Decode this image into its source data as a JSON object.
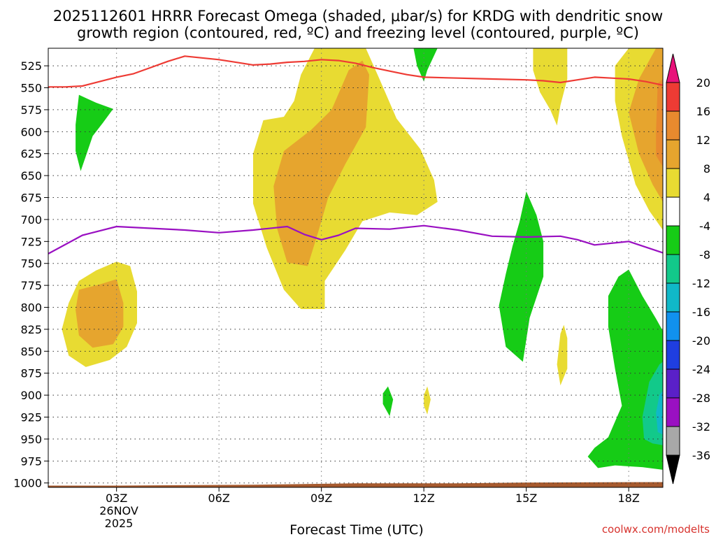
{
  "chart_data": {
    "type": "time-height contour",
    "title_line1": "2025112601 HRRR Forecast Omega (shaded, μbar/s) for KRDG with dendritic snow",
    "title_line2": "growth region (contoured, red, ºC) and freezing level (contoured, purple, ºC)",
    "xlabel": "Forecast Time (UTC)",
    "credit": "coolwx.com/modelts",
    "date_label_day": "26NOV",
    "date_label_year": "2025",
    "x_range_hours": [
      1,
      19
    ],
    "y_range_mb": [
      1005,
      505
    ],
    "x_ticks": [
      {
        "hour": 3,
        "label": "03Z"
      },
      {
        "hour": 6,
        "label": "06Z"
      },
      {
        "hour": 9,
        "label": "09Z"
      },
      {
        "hour": 12,
        "label": "12Z"
      },
      {
        "hour": 15,
        "label": "15Z"
      },
      {
        "hour": 18,
        "label": "18Z"
      }
    ],
    "y_ticks": [
      {
        "p": 525,
        "label": "525"
      },
      {
        "p": 550,
        "label": "550"
      },
      {
        "p": 575,
        "label": "575"
      },
      {
        "p": 600,
        "label": "600"
      },
      {
        "p": 625,
        "label": "625"
      },
      {
        "p": 650,
        "label": "650"
      },
      {
        "p": 675,
        "label": "675"
      },
      {
        "p": 700,
        "label": "700"
      },
      {
        "p": 725,
        "label": "725"
      },
      {
        "p": 750,
        "label": "750"
      },
      {
        "p": 775,
        "label": "775"
      },
      {
        "p": 800,
        "label": "800"
      },
      {
        "p": 825,
        "label": "825"
      },
      {
        "p": 850,
        "label": "850"
      },
      {
        "p": 875,
        "label": "875"
      },
      {
        "p": 900,
        "label": "900"
      },
      {
        "p": 925,
        "label": "925"
      },
      {
        "p": 950,
        "label": "950"
      },
      {
        "p": 975,
        "label": "975"
      },
      {
        "p": 1000,
        "label": "1000"
      }
    ],
    "colorbar": {
      "bands": [
        {
          "lo": 16,
          "hi": 20,
          "color": "#ee3b34"
        },
        {
          "lo": 12,
          "hi": 16,
          "color": "#e88a2e"
        },
        {
          "lo": 8,
          "hi": 12,
          "color": "#e6a52e"
        },
        {
          "lo": 4,
          "hi": 8,
          "color": "#e8db32"
        },
        {
          "lo": -4,
          "hi": 4,
          "color": "#ffffff"
        },
        {
          "lo": -8,
          "hi": -4,
          "color": "#16cc16"
        },
        {
          "lo": -12,
          "hi": -8,
          "color": "#12c98a"
        },
        {
          "lo": -16,
          "hi": -12,
          "color": "#10b8c8"
        },
        {
          "lo": -20,
          "hi": -16,
          "color": "#1191ee"
        },
        {
          "lo": -24,
          "hi": -20,
          "color": "#1f3ee0"
        },
        {
          "lo": -28,
          "hi": -24,
          "color": "#5a20c8"
        },
        {
          "lo": -32,
          "hi": -28,
          "color": "#9a10c2"
        },
        {
          "lo": -36,
          "hi": -32,
          "color": "#a8a8a8"
        }
      ],
      "top_arrow_color": "#e8127a",
      "bottom_arrow_color": "#000000",
      "labels": [
        "20",
        "16",
        "12",
        "8",
        "4",
        "-4",
        "-8",
        "-12",
        "-16",
        "-20",
        "-24",
        "-28",
        "-32",
        "-36"
      ]
    },
    "colors": {
      "positive_4_8": "#e8db32",
      "positive_8_12": "#e6a52e",
      "positive_12_16": "#e88a2e",
      "negative_4_8": "#16cc16",
      "negative_8_12": "#12c98a",
      "negative_12_16": "#10b8c8",
      "dendritic_line": "#ee3b34",
      "freezing_line": "#9a10c2",
      "ground": "#a65a2e"
    },
    "dendritic_growth_top_line": [
      [
        1.0,
        549
      ],
      [
        1.5,
        549
      ],
      [
        2.0,
        548
      ],
      [
        2.5,
        543
      ],
      [
        3.0,
        538
      ],
      [
        3.5,
        534
      ],
      [
        4.0,
        527
      ],
      [
        4.5,
        520
      ],
      [
        5.0,
        514
      ],
      [
        5.5,
        516
      ],
      [
        6.0,
        518
      ],
      [
        6.5,
        521
      ],
      [
        7.0,
        524
      ],
      [
        7.5,
        523
      ],
      [
        8.0,
        521
      ],
      [
        8.5,
        520
      ],
      [
        9.0,
        518
      ],
      [
        9.5,
        519
      ],
      [
        10.0,
        522
      ],
      [
        10.5,
        527
      ],
      [
        11.0,
        531
      ],
      [
        11.5,
        535
      ],
      [
        12.0,
        538
      ],
      [
        13.0,
        539
      ],
      [
        14.0,
        540
      ],
      [
        15.0,
        541
      ],
      [
        15.5,
        542
      ],
      [
        16.0,
        544
      ],
      [
        16.5,
        541
      ],
      [
        17.0,
        538
      ],
      [
        17.5,
        539
      ],
      [
        18.0,
        540
      ],
      [
        18.5,
        543
      ],
      [
        19.0,
        547
      ]
    ],
    "freezing_level_line": [
      [
        1.0,
        739
      ],
      [
        2.0,
        718
      ],
      [
        3.0,
        708
      ],
      [
        4.0,
        710
      ],
      [
        5.0,
        712
      ],
      [
        6.0,
        715
      ],
      [
        7.0,
        712
      ],
      [
        8.0,
        708
      ],
      [
        8.5,
        717
      ],
      [
        9.0,
        723
      ],
      [
        9.5,
        718
      ],
      [
        10.0,
        710
      ],
      [
        11.0,
        711
      ],
      [
        12.0,
        707
      ],
      [
        13.0,
        712
      ],
      [
        14.0,
        719
      ],
      [
        15.0,
        720
      ],
      [
        16.0,
        719
      ],
      [
        16.5,
        723
      ],
      [
        17.0,
        729
      ],
      [
        18.0,
        725
      ],
      [
        19.0,
        738
      ]
    ],
    "omega_regions": [
      {
        "level": "pos4_8",
        "pts": [
          [
            8.8,
            505
          ],
          [
            10.3,
            505
          ],
          [
            10.7,
            540
          ],
          [
            11.2,
            585
          ],
          [
            11.9,
            620
          ],
          [
            12.3,
            655
          ],
          [
            12.4,
            680
          ],
          [
            11.8,
            695
          ],
          [
            11.0,
            692
          ],
          [
            10.2,
            702
          ],
          [
            9.7,
            735
          ],
          [
            9.1,
            770
          ],
          [
            9.1,
            802
          ],
          [
            8.4,
            802
          ],
          [
            7.9,
            780
          ],
          [
            7.4,
            732
          ],
          [
            7.0,
            682
          ],
          [
            7.0,
            625
          ],
          [
            7.3,
            587
          ],
          [
            7.9,
            583
          ],
          [
            8.2,
            565
          ],
          [
            8.4,
            535
          ]
        ]
      },
      {
        "level": "pos8_12",
        "pts": [
          [
            9.3,
            575
          ],
          [
            9.8,
            530
          ],
          [
            10.2,
            519
          ],
          [
            10.4,
            535
          ],
          [
            10.3,
            595
          ],
          [
            9.7,
            637
          ],
          [
            9.2,
            675
          ],
          [
            8.9,
            715
          ],
          [
            8.6,
            753
          ],
          [
            8.0,
            749
          ],
          [
            7.7,
            710
          ],
          [
            7.6,
            662
          ],
          [
            7.9,
            622
          ],
          [
            8.7,
            598
          ]
        ]
      },
      {
        "level": "pos4_8",
        "pts": [
          [
            1.4,
            825
          ],
          [
            1.6,
            795
          ],
          [
            1.9,
            770
          ],
          [
            2.4,
            758
          ],
          [
            3.0,
            748
          ],
          [
            3.4,
            753
          ],
          [
            3.6,
            782
          ],
          [
            3.6,
            818
          ],
          [
            3.3,
            845
          ],
          [
            2.8,
            860
          ],
          [
            2.1,
            868
          ],
          [
            1.6,
            855
          ]
        ]
      },
      {
        "level": "pos8_12",
        "pts": [
          [
            1.8,
            803
          ],
          [
            1.9,
            780
          ],
          [
            2.5,
            774
          ],
          [
            3.0,
            768
          ],
          [
            3.2,
            795
          ],
          [
            3.2,
            822
          ],
          [
            2.9,
            842
          ],
          [
            2.3,
            846
          ],
          [
            1.9,
            832
          ]
        ]
      },
      {
        "level": "pos4_8",
        "pts": [
          [
            15.2,
            505
          ],
          [
            16.2,
            505
          ],
          [
            16.2,
            540
          ],
          [
            16.0,
            570
          ],
          [
            15.9,
            593
          ],
          [
            15.7,
            575
          ],
          [
            15.4,
            555
          ],
          [
            15.2,
            530
          ]
        ]
      },
      {
        "level": "pos4_8",
        "pts": [
          [
            18.0,
            505
          ],
          [
            19.0,
            505
          ],
          [
            19.0,
            712
          ],
          [
            18.6,
            690
          ],
          [
            18.2,
            660
          ],
          [
            17.8,
            605
          ],
          [
            17.6,
            565
          ],
          [
            17.6,
            525
          ]
        ]
      },
      {
        "level": "pos8_12",
        "pts": [
          [
            18.8,
            505
          ],
          [
            19.0,
            505
          ],
          [
            19.0,
            680
          ],
          [
            18.7,
            660
          ],
          [
            18.3,
            625
          ],
          [
            18.0,
            578
          ],
          [
            18.3,
            540
          ]
        ]
      },
      {
        "level": "pos12_16",
        "pts": [
          [
            18.85,
            545
          ],
          [
            19.0,
            540
          ],
          [
            19.0,
            640
          ],
          [
            18.8,
            627
          ],
          [
            18.8,
            600
          ]
        ]
      },
      {
        "level": "pos4_8",
        "pts": [
          [
            16.0,
            830
          ],
          [
            16.1,
            820
          ],
          [
            16.2,
            835
          ],
          [
            16.2,
            870
          ],
          [
            16.0,
            889
          ],
          [
            15.9,
            865
          ]
        ]
      },
      {
        "level": "pos4_8",
        "pts": [
          [
            12.0,
            900
          ],
          [
            12.1,
            890
          ],
          [
            12.2,
            905
          ],
          [
            12.1,
            922
          ],
          [
            12.0,
            912
          ]
        ]
      },
      {
        "level": "neg4_8",
        "pts": [
          [
            11.7,
            505
          ],
          [
            12.4,
            505
          ],
          [
            12.1,
            530
          ],
          [
            12.0,
            543
          ],
          [
            11.8,
            525
          ]
        ]
      },
      {
        "level": "neg4_8",
        "pts": [
          [
            1.9,
            558
          ],
          [
            2.4,
            567
          ],
          [
            2.9,
            574
          ],
          [
            2.6,
            590
          ],
          [
            2.3,
            605
          ],
          [
            2.1,
            628
          ],
          [
            1.95,
            645
          ],
          [
            1.8,
            622
          ],
          [
            1.8,
            592
          ]
        ]
      },
      {
        "level": "neg4_8",
        "pts": [
          [
            14.6,
            730
          ],
          [
            14.8,
            703
          ],
          [
            15.0,
            668
          ],
          [
            15.3,
            695
          ],
          [
            15.5,
            725
          ],
          [
            15.5,
            765
          ],
          [
            15.1,
            812
          ],
          [
            14.9,
            862
          ],
          [
            14.4,
            845
          ],
          [
            14.2,
            798
          ],
          [
            14.4,
            762
          ]
        ]
      },
      {
        "level": "neg4_8",
        "pts": [
          [
            10.8,
            898
          ],
          [
            10.95,
            890
          ],
          [
            11.1,
            905
          ],
          [
            11.0,
            924
          ],
          [
            10.8,
            910
          ]
        ]
      },
      {
        "level": "neg4_8",
        "pts": [
          [
            17.4,
            787
          ],
          [
            17.7,
            765
          ],
          [
            18.0,
            757
          ],
          [
            18.4,
            787
          ],
          [
            18.8,
            813
          ],
          [
            19.0,
            827
          ],
          [
            19.0,
            985
          ],
          [
            18.4,
            982
          ],
          [
            17.6,
            980
          ],
          [
            17.1,
            983
          ],
          [
            16.8,
            970
          ],
          [
            17.0,
            960
          ],
          [
            17.4,
            948
          ],
          [
            17.8,
            912
          ],
          [
            17.6,
            870
          ],
          [
            17.4,
            822
          ]
        ]
      },
      {
        "level": "neg8_12",
        "pts": [
          [
            18.4,
            925
          ],
          [
            18.6,
            885
          ],
          [
            18.9,
            865
          ],
          [
            19.0,
            862
          ],
          [
            19.0,
            957
          ],
          [
            18.7,
            955
          ],
          [
            18.45,
            950
          ]
        ]
      },
      {
        "level": "neg12_16",
        "pts": [
          [
            18.8,
            920
          ],
          [
            18.9,
            900
          ],
          [
            19.0,
            895
          ],
          [
            19.0,
            945
          ],
          [
            18.85,
            942
          ]
        ]
      }
    ],
    "ground_line": [
      [
        1.0,
        1003
      ],
      [
        3.0,
        1003
      ],
      [
        7.0,
        1002
      ],
      [
        10.0,
        1000.5
      ],
      [
        13.0,
        1000.5
      ],
      [
        15.0,
        999.5
      ],
      [
        19.0,
        999
      ]
    ]
  }
}
